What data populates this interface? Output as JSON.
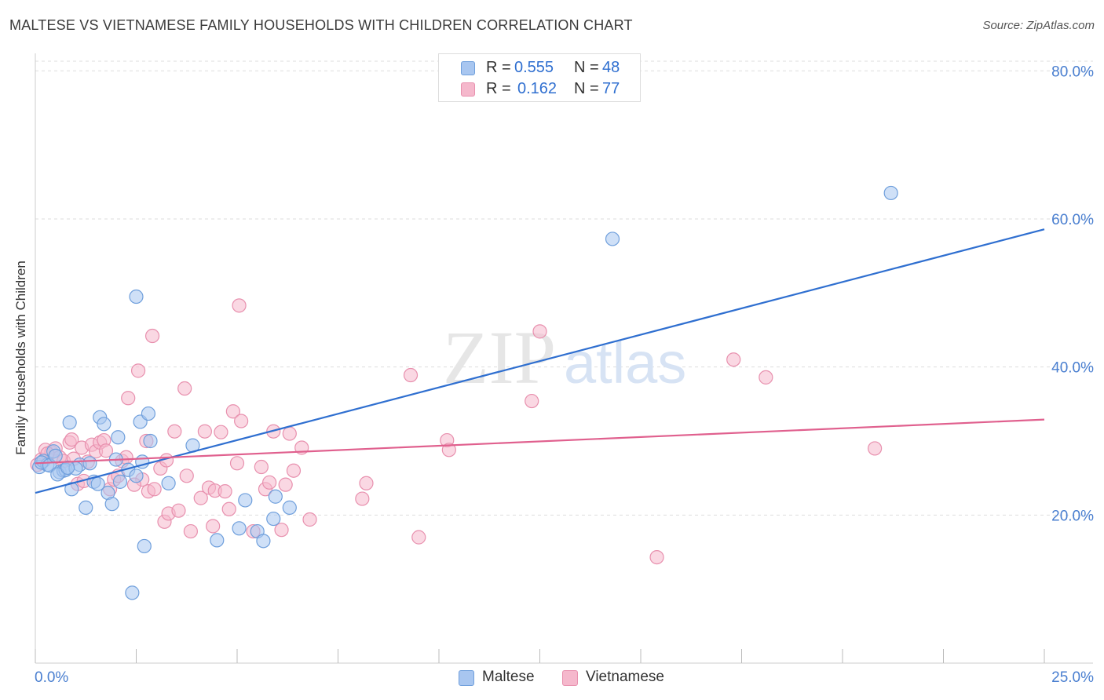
{
  "title": "MALTESE VS VIETNAMESE FAMILY HOUSEHOLDS WITH CHILDREN CORRELATION CHART",
  "source": "Source: ZipAtlas.com",
  "watermark": {
    "zip": "ZIP",
    "atlas": "atlas"
  },
  "colors": {
    "maltese_fill": "#a8c6f0",
    "maltese_stroke": "#6f9fdc",
    "maltese_line": "#2f6fd0",
    "vietnamese_fill": "#f5b8cc",
    "vietnamese_stroke": "#e890ae",
    "vietnamese_line": "#e0608e",
    "axis_label": "#4a7fd0",
    "grid": "#dddddd"
  },
  "stats": {
    "maltese": {
      "r_label": "R =",
      "r_value": "0.555",
      "n_label": "N =",
      "n_value": "48"
    },
    "vietnamese": {
      "r_label": "R =",
      "r_value": "0.162",
      "n_label": "N =",
      "n_value": "77"
    }
  },
  "legend": {
    "maltese": "Maltese",
    "vietnamese": "Vietnamese"
  },
  "chart_data": {
    "type": "scatter",
    "title": "MALTESE VS VIETNAMESE FAMILY HOUSEHOLDS WITH CHILDREN CORRELATION CHART",
    "xlabel": "",
    "ylabel": "Family Households with Children",
    "xlim": [
      0,
      25
    ],
    "ylim": [
      0,
      83
    ],
    "x_tick_labels": [
      "0.0%",
      "25.0%"
    ],
    "y_ticks": [
      20,
      40,
      60,
      80
    ],
    "y_tick_labels": [
      "20.0%",
      "40.0%",
      "60.0%",
      "80.0%"
    ],
    "grid": true,
    "series": [
      {
        "name": "Maltese",
        "points": [
          [
            0.1,
            26.5
          ],
          [
            0.2,
            27.3
          ],
          [
            0.3,
            26.8
          ],
          [
            0.45,
            28.6
          ],
          [
            0.6,
            25.8
          ],
          [
            0.7,
            26.0
          ],
          [
            0.75,
            26.1
          ],
          [
            0.85,
            32.5
          ],
          [
            0.9,
            23.5
          ],
          [
            1.1,
            26.8
          ],
          [
            1.25,
            21.0
          ],
          [
            1.35,
            27.0
          ],
          [
            1.45,
            24.5
          ],
          [
            1.6,
            33.2
          ],
          [
            1.7,
            32.3
          ],
          [
            1.8,
            23.0
          ],
          [
            1.9,
            21.5
          ],
          [
            2.0,
            27.5
          ],
          [
            2.05,
            30.5
          ],
          [
            2.1,
            24.5
          ],
          [
            2.3,
            26.1
          ],
          [
            2.5,
            25.3
          ],
          [
            2.5,
            49.5
          ],
          [
            2.6,
            32.6
          ],
          [
            2.65,
            27.2
          ],
          [
            2.7,
            15.8
          ],
          [
            2.8,
            33.7
          ],
          [
            2.85,
            30.0
          ],
          [
            3.3,
            24.3
          ],
          [
            3.9,
            29.4
          ],
          [
            4.5,
            16.6
          ],
          [
            5.05,
            18.2
          ],
          [
            5.2,
            22.0
          ],
          [
            5.5,
            17.8
          ],
          [
            5.65,
            16.5
          ],
          [
            5.9,
            19.5
          ],
          [
            5.95,
            22.5
          ],
          [
            6.3,
            21.0
          ],
          [
            2.4,
            9.5
          ],
          [
            14.3,
            57.3
          ],
          [
            21.2,
            63.5
          ],
          [
            0.15,
            27.1
          ],
          [
            0.35,
            26.7
          ],
          [
            0.55,
            25.5
          ],
          [
            1.0,
            26.3
          ],
          [
            1.55,
            24.2
          ],
          [
            0.5,
            28.0
          ],
          [
            0.8,
            26.4
          ]
        ],
        "trend": {
          "x": [
            0,
            25
          ],
          "y": [
            23.0,
            58.6
          ]
        }
      },
      {
        "name": "Vietnamese",
        "points": [
          [
            0.05,
            26.8
          ],
          [
            0.15,
            27.5
          ],
          [
            0.25,
            28.8
          ],
          [
            0.4,
            28.5
          ],
          [
            0.5,
            29.0
          ],
          [
            0.6,
            27.8
          ],
          [
            0.7,
            27.3
          ],
          [
            0.85,
            29.8
          ],
          [
            0.9,
            30.2
          ],
          [
            1.05,
            24.2
          ],
          [
            1.15,
            29.1
          ],
          [
            1.2,
            24.6
          ],
          [
            1.3,
            27.2
          ],
          [
            1.4,
            29.5
          ],
          [
            1.5,
            28.6
          ],
          [
            1.6,
            29.8
          ],
          [
            1.7,
            30.1
          ],
          [
            1.85,
            23.5
          ],
          [
            1.95,
            24.8
          ],
          [
            2.05,
            25.3
          ],
          [
            2.15,
            27.3
          ],
          [
            2.25,
            27.8
          ],
          [
            2.3,
            35.8
          ],
          [
            2.55,
            39.5
          ],
          [
            2.65,
            24.8
          ],
          [
            2.75,
            30.0
          ],
          [
            2.8,
            23.2
          ],
          [
            2.9,
            44.2
          ],
          [
            2.95,
            23.5
          ],
          [
            3.1,
            26.3
          ],
          [
            3.2,
            19.1
          ],
          [
            3.25,
            27.4
          ],
          [
            3.3,
            20.2
          ],
          [
            3.45,
            31.3
          ],
          [
            3.55,
            20.6
          ],
          [
            3.7,
            37.1
          ],
          [
            3.75,
            25.3
          ],
          [
            3.85,
            17.8
          ],
          [
            4.1,
            22.3
          ],
          [
            4.2,
            31.3
          ],
          [
            4.3,
            23.7
          ],
          [
            4.4,
            18.5
          ],
          [
            4.45,
            23.3
          ],
          [
            4.6,
            31.2
          ],
          [
            4.7,
            23.2
          ],
          [
            4.8,
            20.8
          ],
          [
            4.9,
            34.0
          ],
          [
            5.0,
            27.0
          ],
          [
            5.05,
            48.3
          ],
          [
            5.1,
            32.7
          ],
          [
            5.4,
            17.8
          ],
          [
            5.6,
            26.5
          ],
          [
            5.7,
            23.5
          ],
          [
            5.8,
            24.4
          ],
          [
            5.9,
            31.3
          ],
          [
            6.1,
            18.0
          ],
          [
            6.2,
            24.1
          ],
          [
            6.3,
            31.0
          ],
          [
            6.4,
            26.0
          ],
          [
            6.6,
            29.1
          ],
          [
            6.8,
            19.4
          ],
          [
            8.1,
            22.2
          ],
          [
            8.2,
            24.3
          ],
          [
            9.3,
            38.9
          ],
          [
            9.5,
            17.0
          ],
          [
            10.2,
            30.1
          ],
          [
            10.25,
            28.8
          ],
          [
            12.3,
            35.4
          ],
          [
            12.5,
            44.8
          ],
          [
            17.3,
            41.0
          ],
          [
            18.1,
            38.6
          ],
          [
            20.8,
            29.0
          ],
          [
            15.4,
            14.3
          ],
          [
            0.3,
            28.3
          ],
          [
            0.95,
            27.6
          ],
          [
            1.75,
            28.7
          ],
          [
            2.45,
            24.1
          ]
        ],
        "trend": {
          "x": [
            0,
            25
          ],
          "y": [
            27.0,
            32.9
          ]
        }
      }
    ]
  }
}
